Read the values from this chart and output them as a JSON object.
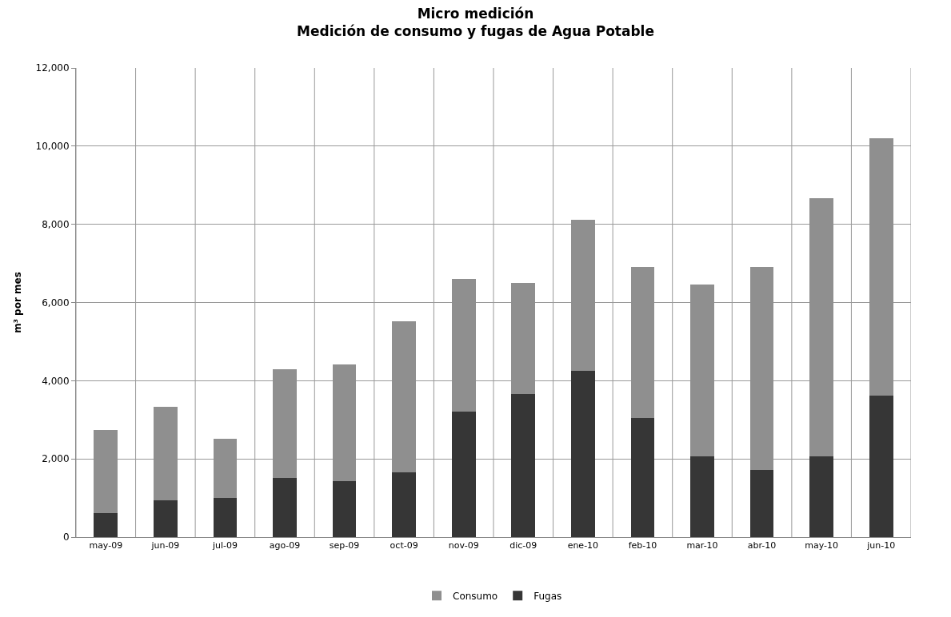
{
  "chart_data": {
    "type": "bar",
    "title": "Micro medición\nMedición de consumo y fugas de Agua Potable",
    "ylabel": "m³ por mes",
    "categories": [
      "may-09",
      "jun-09",
      "jul-09",
      "ago-09",
      "sep-09",
      "oct-09",
      "nov-09",
      "dic-09",
      "ene-10",
      "feb-10",
      "mar-10",
      "abr-10",
      "may-10",
      "jun-10"
    ],
    "stacked": true,
    "series": [
      {
        "name": "Fugas",
        "color": "#363636",
        "values": [
          615,
          935,
          1000,
          1510,
          1435,
          1660,
          3210,
          3655,
          4255,
          3055,
          2065,
          1725,
          2065,
          3625
        ]
      },
      {
        "name": "Consumo",
        "color": "#8f8f8f",
        "values": [
          2115,
          2400,
          1515,
          2775,
          2980,
          3865,
          3390,
          2850,
          3860,
          3855,
          4405,
          5185,
          6595,
          6580
        ]
      }
    ],
    "ylim": [
      0,
      12000
    ],
    "yticks": [
      {
        "value": 0,
        "label": "0"
      },
      {
        "value": 2000,
        "label": "2,000"
      },
      {
        "value": 4000,
        "label": "4,000"
      },
      {
        "value": 6000,
        "label": "6,000"
      },
      {
        "value": 8000,
        "label": "8,000"
      },
      {
        "value": 10000,
        "label": "10,000"
      },
      {
        "value": 12000,
        "label": "12,000"
      }
    ],
    "grid": true,
    "legend": "bottom"
  }
}
